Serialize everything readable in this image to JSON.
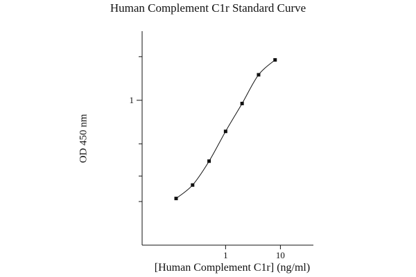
{
  "chart_data": {
    "type": "line",
    "title": "Human Complement C1r Standard Curve",
    "xlabel": "[Human Complement C1r] (ng/ml)",
    "ylabel": "OD 450 nm",
    "x_scale": "log",
    "y_scale": "log",
    "xlim": [
      0.03,
      40
    ],
    "ylim": [
      0.1,
      3
    ],
    "x_ticks": [
      {
        "value": 1,
        "label": "1"
      },
      {
        "value": 10,
        "label": "10"
      }
    ],
    "y_ticks": [
      {
        "value": 1,
        "label": "1"
      }
    ],
    "grid": false,
    "series": [
      {
        "x": [
          0.125,
          0.25,
          0.5,
          1,
          2,
          4,
          8
        ],
        "y": [
          0.21,
          0.26,
          0.38,
          0.61,
          0.95,
          1.5,
          1.9
        ]
      }
    ]
  }
}
